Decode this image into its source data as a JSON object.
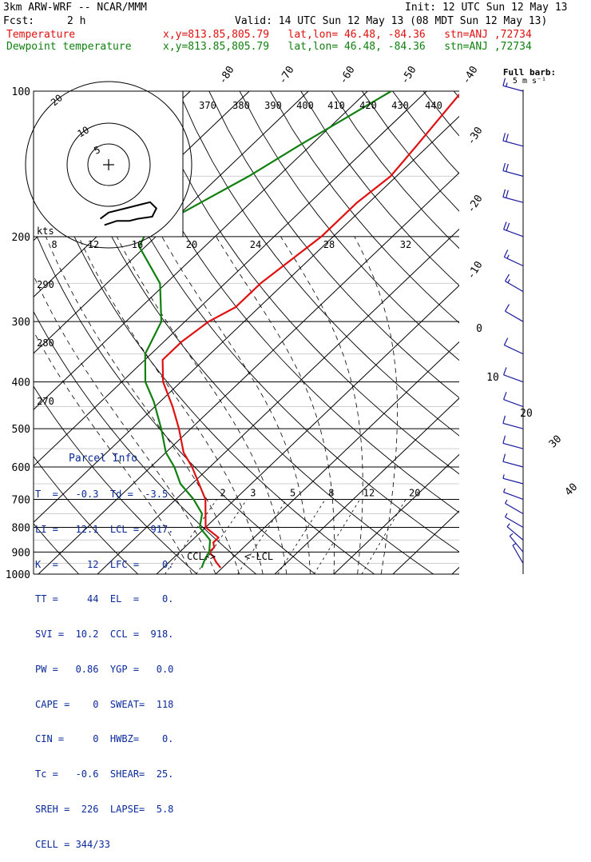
{
  "header": {
    "model": "3km ARW-WRF -- NCAR/MMM",
    "init": "Init: 12 UTC Sun 12 May 13",
    "fcst_label": "Fcst:",
    "fcst_value": "2 h",
    "valid": "Valid: 14 UTC Sun 12 May 13 (08 MDT Sun 12 May 13)",
    "temp_label": "Temperature",
    "temp_info": "x,y=813.85,805.79   lat,lon= 46.48, -84.36   stn=ANJ ,72734",
    "dew_label": "Dewpoint temperature",
    "dew_info": "x,y=813.85,805.79   lat,lon= 46.48, -84.36   stn=ANJ ,72734"
  },
  "barb_legend": {
    "line1": "Full barb:",
    "line2": "5 m s⁻¹"
  },
  "colors": {
    "temperature": "#e01010",
    "dewpoint": "#108010",
    "barbs": "#1a1aa0",
    "parcel": "#0a2a9a",
    "hodo": "#000000"
  },
  "chart_data": {
    "type": "line",
    "subtype": "skew-T log-P sounding",
    "y_scale": "log",
    "ylim": [
      1000,
      100
    ],
    "pressure_ticks": [
      100,
      200,
      300,
      400,
      500,
      600,
      700,
      800,
      900,
      1000
    ],
    "isotherm_labels": [
      "-80",
      "-70",
      "-60",
      "-50",
      "-40",
      "-30",
      "-20",
      "-10",
      "0",
      "10",
      "20",
      "30",
      "40"
    ],
    "theta_labels": [
      "370",
      "380",
      "390",
      "400",
      "410",
      "420",
      "430",
      "440",
      "290",
      "280",
      "270"
    ],
    "mixing_ratio_labels": [
      "2",
      "3",
      "5",
      "8",
      "12",
      "20"
    ],
    "hodograph_speed_labels": [
      "kts",
      "8",
      "12",
      "16",
      "20",
      "24",
      "28",
      "32"
    ],
    "hodograph_ring_labels": [
      "5",
      "10",
      "20"
    ],
    "annotations": [
      "CCL->",
      "<-LCL"
    ],
    "series": [
      {
        "name": "Temperature",
        "p": [
          970,
          945,
          920,
          900,
          880,
          860,
          840,
          800,
          700,
          600,
          560,
          500,
          450,
          400,
          360,
          330,
          300,
          280,
          250,
          200,
          170,
          150,
          130,
          100
        ],
        "t": [
          -0.3,
          -2,
          -3.5,
          -5,
          -5,
          -6,
          -6,
          -10,
          -15,
          -23,
          -27,
          -32,
          -37,
          -43,
          -47,
          -47,
          -46,
          -44,
          -44,
          -42,
          -42,
          -41,
          -42,
          -44
        ]
      },
      {
        "name": "Dewpoint temperature",
        "p": [
          970,
          930,
          900,
          850,
          800,
          750,
          700,
          650,
          600,
          560,
          500,
          440,
          400,
          350,
          300,
          250,
          210,
          200,
          180,
          150,
          130,
          100
        ],
        "t": [
          -3.5,
          -4.5,
          -5,
          -7,
          -11,
          -13,
          -17,
          -22,
          -26,
          -30,
          -35,
          -41,
          -46,
          -51,
          -54,
          -61,
          -71,
          -72,
          -70,
          -65,
          -62,
          -56
        ]
      }
    ],
    "wind_barbs": [
      {
        "p": 100,
        "kt": 15,
        "dir": 285
      },
      {
        "p": 130,
        "kt": 20,
        "dir": 285
      },
      {
        "p": 150,
        "kt": 20,
        "dir": 285
      },
      {
        "p": 170,
        "kt": 20,
        "dir": 285
      },
      {
        "p": 200,
        "kt": 20,
        "dir": 290
      },
      {
        "p": 230,
        "kt": 15,
        "dir": 295
      },
      {
        "p": 260,
        "kt": 15,
        "dir": 300
      },
      {
        "p": 300,
        "kt": 10,
        "dir": 300
      },
      {
        "p": 350,
        "kt": 10,
        "dir": 295
      },
      {
        "p": 400,
        "kt": 10,
        "dir": 290
      },
      {
        "p": 450,
        "kt": 10,
        "dir": 290
      },
      {
        "p": 500,
        "kt": 10,
        "dir": 285
      },
      {
        "p": 550,
        "kt": 10,
        "dir": 285
      },
      {
        "p": 600,
        "kt": 10,
        "dir": 285
      },
      {
        "p": 650,
        "kt": 5,
        "dir": 285
      },
      {
        "p": 700,
        "kt": 5,
        "dir": 290
      },
      {
        "p": 750,
        "kt": 5,
        "dir": 300
      },
      {
        "p": 800,
        "kt": 5,
        "dir": 300
      },
      {
        "p": 850,
        "kt": 5,
        "dir": 310
      },
      {
        "p": 900,
        "kt": 5,
        "dir": 320
      },
      {
        "p": 950,
        "kt": 5,
        "dir": 330
      }
    ]
  },
  "parcel_info": {
    "title": "Parcel Info",
    "rows": [
      "T  =   -0.3  Td =  -3.5",
      "LI =   12.1  LCL =  917.",
      "K  =     12  LFC =    0.",
      "TT =     44  EL  =    0.",
      "SVI =  10.2  CCL =  918.",
      "PW =   0.86  YGP =   0.0",
      "CAPE =    0  SWEAT=  118",
      "CIN =     0  HWBZ=    0.",
      "Tc =   -0.6  SHEAR=  25.",
      "SREH =  226  LAPSE=  5.8",
      "CELL = 344/33"
    ]
  }
}
